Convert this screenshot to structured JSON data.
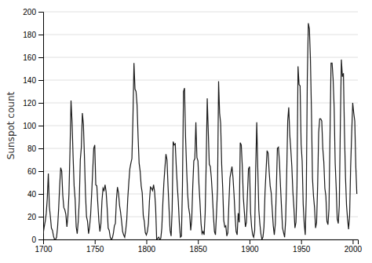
{
  "chart_data": {
    "type": "line",
    "ylabel": "Sunspot count",
    "color": "#1a1a1a",
    "grid": true,
    "xlim": [
      1700,
      2005
    ],
    "ylim": [
      0,
      200
    ],
    "xticks": [
      1700,
      1750,
      1800,
      1850,
      1900,
      1950,
      2000
    ],
    "yticks": [
      0,
      20,
      40,
      60,
      80,
      100,
      120,
      140,
      160,
      180,
      200
    ],
    "x": [
      1700,
      1701,
      1702,
      1703,
      1704,
      1705,
      1706,
      1707,
      1708,
      1709,
      1710,
      1711,
      1712,
      1713,
      1714,
      1715,
      1716,
      1717,
      1718,
      1719,
      1720,
      1721,
      1722,
      1723,
      1724,
      1725,
      1726,
      1727,
      1728,
      1729,
      1730,
      1731,
      1732,
      1733,
      1734,
      1735,
      1736,
      1737,
      1738,
      1739,
      1740,
      1741,
      1742,
      1743,
      1744,
      1745,
      1746,
      1747,
      1748,
      1749,
      1750,
      1751,
      1752,
      1753,
      1754,
      1755,
      1756,
      1757,
      1758,
      1759,
      1760,
      1761,
      1762,
      1763,
      1764,
      1765,
      1766,
      1767,
      1768,
      1769,
      1770,
      1771,
      1772,
      1773,
      1774,
      1775,
      1776,
      1777,
      1778,
      1779,
      1780,
      1781,
      1782,
      1783,
      1784,
      1785,
      1786,
      1787,
      1788,
      1789,
      1790,
      1791,
      1792,
      1793,
      1794,
      1795,
      1796,
      1797,
      1798,
      1799,
      1800,
      1801,
      1802,
      1803,
      1804,
      1805,
      1806,
      1807,
      1808,
      1809,
      1810,
      1811,
      1812,
      1813,
      1814,
      1815,
      1816,
      1817,
      1818,
      1819,
      1820,
      1821,
      1822,
      1823,
      1824,
      1825,
      1826,
      1827,
      1828,
      1829,
      1830,
      1831,
      1832,
      1833,
      1834,
      1835,
      1836,
      1837,
      1838,
      1839,
      1840,
      1841,
      1842,
      1843,
      1844,
      1845,
      1846,
      1847,
      1848,
      1849,
      1850,
      1851,
      1852,
      1853,
      1854,
      1855,
      1856,
      1857,
      1858,
      1859,
      1860,
      1861,
      1862,
      1863,
      1864,
      1865,
      1866,
      1867,
      1868,
      1869,
      1870,
      1871,
      1872,
      1873,
      1874,
      1875,
      1876,
      1877,
      1878,
      1879,
      1880,
      1881,
      1882,
      1883,
      1884,
      1885,
      1886,
      1887,
      1888,
      1889,
      1890,
      1891,
      1892,
      1893,
      1894,
      1895,
      1896,
      1897,
      1898,
      1899,
      1900,
      1901,
      1902,
      1903,
      1904,
      1905,
      1906,
      1907,
      1908,
      1909,
      1910,
      1911,
      1912,
      1913,
      1914,
      1915,
      1916,
      1917,
      1918,
      1919,
      1920,
      1921,
      1922,
      1923,
      1924,
      1925,
      1926,
      1927,
      1928,
      1929,
      1930,
      1931,
      1932,
      1933,
      1934,
      1935,
      1936,
      1937,
      1938,
      1939,
      1940,
      1941,
      1942,
      1943,
      1944,
      1945,
      1946,
      1947,
      1948,
      1949,
      1950,
      1951,
      1952,
      1953,
      1954,
      1955,
      1956,
      1957,
      1958,
      1959,
      1960,
      1961,
      1962,
      1963,
      1964,
      1965,
      1966,
      1967,
      1968,
      1969,
      1970,
      1971,
      1972,
      1973,
      1974,
      1975,
      1976,
      1977,
      1978,
      1979,
      1980,
      1981,
      1982,
      1983,
      1984,
      1985,
      1986,
      1987,
      1988,
      1989,
      1990,
      1991,
      1992,
      1993,
      1994,
      1995,
      1996,
      1997,
      1998,
      1999,
      2000,
      2001,
      2002,
      2003,
      2004
    ],
    "values": [
      5,
      11,
      16,
      23,
      36,
      58,
      29,
      20,
      10,
      8,
      3,
      0,
      0,
      2,
      11,
      27,
      47,
      63,
      60,
      39,
      28,
      26,
      22,
      11,
      21,
      40,
      78,
      122,
      103,
      73,
      47,
      35,
      11,
      5,
      16,
      34,
      70,
      81,
      111,
      101,
      73,
      40,
      20,
      16,
      5,
      11,
      22,
      40,
      60,
      80,
      83,
      48,
      47,
      31,
      16,
      7,
      14,
      34,
      45,
      43,
      48,
      42,
      28,
      10,
      8,
      2,
      0,
      1,
      5,
      12,
      14,
      35,
      46,
      41,
      30,
      24,
      16,
      7,
      4,
      2,
      8,
      17,
      36,
      50,
      62,
      67,
      71,
      106,
      155,
      132,
      130,
      118,
      90,
      67,
      60,
      47,
      41,
      21,
      16,
      6,
      4,
      7,
      14,
      34,
      46,
      45,
      43,
      48,
      42,
      28,
      0,
      1,
      2,
      0,
      1,
      10,
      32,
      50,
      63,
      75,
      70,
      47,
      27,
      8,
      3,
      26,
      86,
      83,
      84,
      64,
      47,
      33,
      14,
      2,
      3,
      47,
      130,
      133,
      90,
      63,
      40,
      28,
      22,
      8,
      18,
      47,
      69,
      71,
      103,
      72,
      69,
      48,
      32,
      14,
      5,
      7,
      4,
      23,
      67,
      124,
      95,
      66,
      64,
      54,
      39,
      21,
      7,
      4,
      23,
      45,
      139,
      111,
      102,
      66,
      45,
      17,
      11,
      12,
      3,
      6,
      32,
      54,
      59,
      64,
      54,
      39,
      21,
      7,
      4,
      23,
      15,
      85,
      83,
      64,
      37,
      24,
      11,
      15,
      40,
      62,
      64,
      24,
      11,
      4,
      2,
      8,
      63,
      103,
      62,
      26,
      14,
      5,
      0,
      2,
      11,
      41,
      60,
      78,
      76,
      60,
      47,
      41,
      26,
      12,
      4,
      14,
      45,
      80,
      81,
      68,
      47,
      28,
      10,
      6,
      2,
      17,
      56,
      104,
      116,
      92,
      79,
      64,
      42,
      28,
      10,
      15,
      47,
      152,
      136,
      135,
      84,
      69,
      31,
      14,
      4,
      38,
      142,
      190,
      185,
      159,
      113,
      54,
      38,
      28,
      10,
      15,
      47,
      94,
      106,
      106,
      104,
      80,
      68,
      45,
      38,
      16,
      13,
      27,
      92,
      155,
      155,
      141,
      116,
      67,
      45,
      18,
      14,
      30,
      100,
      158,
      143,
      146,
      94,
      55,
      30,
      18,
      9,
      21,
      64,
      93,
      120,
      111,
      104,
      64,
      40
    ]
  }
}
